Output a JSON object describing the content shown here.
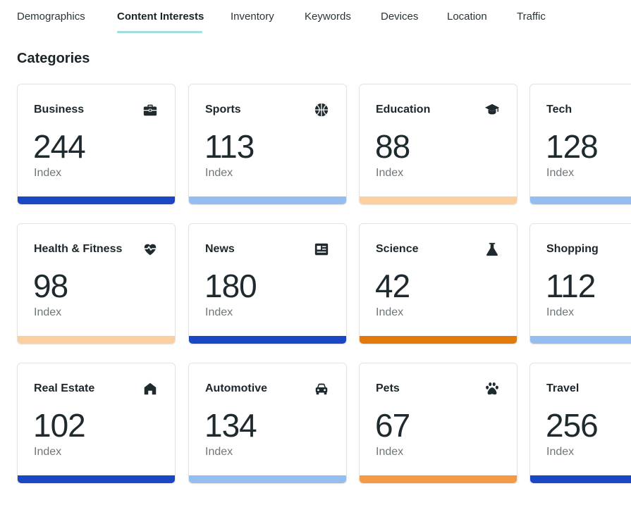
{
  "tabs": [
    {
      "label": "Demographics",
      "active": false
    },
    {
      "label": "Content Interests",
      "active": true
    },
    {
      "label": "Inventory",
      "active": false
    },
    {
      "label": "Keywords",
      "active": false
    },
    {
      "label": "Devices",
      "active": false
    },
    {
      "label": "Location",
      "active": false
    },
    {
      "label": "Traffic",
      "active": false
    }
  ],
  "section_title": "Categories",
  "cards": [
    {
      "name": "Business",
      "value": "244",
      "unit": "Index",
      "icon": "briefcase-icon",
      "bar_color": "#1a48c4"
    },
    {
      "name": "Sports",
      "value": "113",
      "unit": "Index",
      "icon": "basketball-icon",
      "bar_color": "#94bdf0"
    },
    {
      "name": "Education",
      "value": "88",
      "unit": "Index",
      "icon": "graduation-cap-icon",
      "bar_color": "#fcd09e"
    },
    {
      "name": "Tech",
      "value": "128",
      "unit": "Index",
      "icon": "",
      "bar_color": "#94bdf0"
    },
    {
      "name": "Health & Fitness",
      "value": "98",
      "unit": "Index",
      "icon": "heart-pulse-icon",
      "bar_color": "#fcd09e"
    },
    {
      "name": "News",
      "value": "180",
      "unit": "Index",
      "icon": "newspaper-icon",
      "bar_color": "#1a48c4"
    },
    {
      "name": "Science",
      "value": "42",
      "unit": "Index",
      "icon": "flask-icon",
      "bar_color": "#e07a0b"
    },
    {
      "name": "Shopping",
      "value": "112",
      "unit": "Index",
      "icon": "",
      "bar_color": "#94bdf0"
    },
    {
      "name": "Real Estate",
      "value": "102",
      "unit": "Index",
      "icon": "house-icon",
      "bar_color": "#1a48c4"
    },
    {
      "name": "Automotive",
      "value": "134",
      "unit": "Index",
      "icon": "car-icon",
      "bar_color": "#94bdf0"
    },
    {
      "name": "Pets",
      "value": "67",
      "unit": "Index",
      "icon": "paw-icon",
      "bar_color": "#f49a46"
    },
    {
      "name": "Travel",
      "value": "256",
      "unit": "Index",
      "icon": "",
      "bar_color": "#1a48c4"
    }
  ]
}
